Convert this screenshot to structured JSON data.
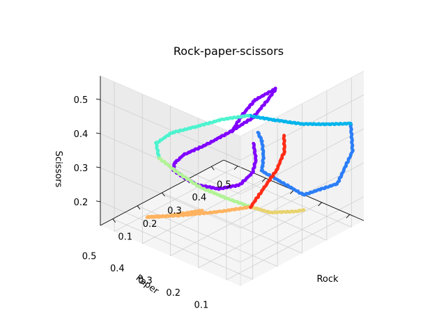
{
  "chart_data": {
    "type": "scatter",
    "projection": "3d",
    "title": "Rock-paper-scissors",
    "xlabel": "Rock",
    "ylabel": "Paper",
    "zlabel": "Scissors",
    "xticks": [
      "0.1",
      "0.2",
      "0.3",
      "0.4",
      "0.5"
    ],
    "yticks": [
      "0.1",
      "0.2",
      "0.3",
      "0.4",
      "0.5"
    ],
    "zticks": [
      "0.2",
      "0.3",
      "0.4",
      "0.5"
    ],
    "xlim": [
      0.05,
      0.55
    ],
    "ylim": [
      0.05,
      0.55
    ],
    "zlim": [
      0.13,
      0.57
    ],
    "grid": true,
    "colormap": "rainbow",
    "series": [
      {
        "color": "#8000ff",
        "points": [
          [
            0.3,
            0.3,
            0.4
          ],
          [
            0.33,
            0.29,
            0.44
          ],
          [
            0.36,
            0.27,
            0.48
          ],
          [
            0.38,
            0.22,
            0.52
          ],
          [
            0.33,
            0.17,
            0.56
          ],
          [
            0.25,
            0.13,
            0.57
          ],
          [
            0.18,
            0.12,
            0.55
          ],
          [
            0.12,
            0.15,
            0.52
          ],
          [
            0.08,
            0.2,
            0.48
          ],
          [
            0.07,
            0.27,
            0.43
          ],
          [
            0.09,
            0.32,
            0.38
          ],
          [
            0.13,
            0.36,
            0.33
          ],
          [
            0.19,
            0.38,
            0.28
          ],
          [
            0.24,
            0.37,
            0.24
          ],
          [
            0.29,
            0.34,
            0.22
          ],
          [
            0.33,
            0.3,
            0.23
          ],
          [
            0.35,
            0.27,
            0.27
          ],
          [
            0.34,
            0.25,
            0.32
          ],
          [
            0.33,
            0.25,
            0.37
          ]
        ]
      },
      {
        "color": "#2c7ef7",
        "points": [
          [
            0.2,
            0.12,
            0.5
          ],
          [
            0.24,
            0.14,
            0.45
          ],
          [
            0.28,
            0.17,
            0.38
          ],
          [
            0.31,
            0.2,
            0.33
          ],
          [
            0.33,
            0.22,
            0.3
          ],
          [
            0.42,
            0.15,
            0.22
          ],
          [
            0.5,
            0.1,
            0.24
          ],
          [
            0.55,
            0.09,
            0.32
          ],
          [
            0.52,
            0.07,
            0.42
          ]
        ]
      },
      {
        "color": "#00b5eb",
        "points": [
          [
            0.52,
            0.07,
            0.42
          ],
          [
            0.46,
            0.1,
            0.43
          ],
          [
            0.4,
            0.14,
            0.44
          ],
          [
            0.35,
            0.2,
            0.45
          ],
          [
            0.31,
            0.25,
            0.46
          ]
        ]
      },
      {
        "color": "#4df3ce",
        "points": [
          [
            0.31,
            0.25,
            0.46
          ],
          [
            0.26,
            0.3,
            0.45
          ],
          [
            0.21,
            0.35,
            0.43
          ],
          [
            0.17,
            0.4,
            0.41
          ],
          [
            0.14,
            0.43,
            0.38
          ],
          [
            0.14,
            0.42,
            0.34
          ]
        ]
      },
      {
        "color": "#b2f396",
        "points": [
          [
            0.14,
            0.42,
            0.34
          ],
          [
            0.17,
            0.38,
            0.3
          ],
          [
            0.22,
            0.34,
            0.25
          ],
          [
            0.28,
            0.3,
            0.21
          ],
          [
            0.33,
            0.26,
            0.18
          ]
        ]
      },
      {
        "color": "#ffb360",
        "points": [
          [
            0.33,
            0.26,
            0.18
          ],
          [
            0.28,
            0.33,
            0.16
          ],
          [
            0.22,
            0.42,
            0.14
          ],
          [
            0.17,
            0.49,
            0.13
          ],
          [
            0.2,
            0.46,
            0.13
          ],
          [
            0.27,
            0.38,
            0.15
          ]
        ]
      },
      {
        "color": "#e8d36e",
        "points": [
          [
            0.33,
            0.26,
            0.18
          ],
          [
            0.4,
            0.25,
            0.14
          ],
          [
            0.48,
            0.23,
            0.12
          ],
          [
            0.5,
            0.22,
            0.12
          ]
        ]
      },
      {
        "color": "#ff2c16",
        "points": [
          [
            0.33,
            0.26,
            0.18
          ],
          [
            0.36,
            0.24,
            0.23
          ],
          [
            0.39,
            0.22,
            0.28
          ],
          [
            0.41,
            0.21,
            0.33
          ],
          [
            0.42,
            0.22,
            0.37
          ]
        ]
      }
    ]
  }
}
